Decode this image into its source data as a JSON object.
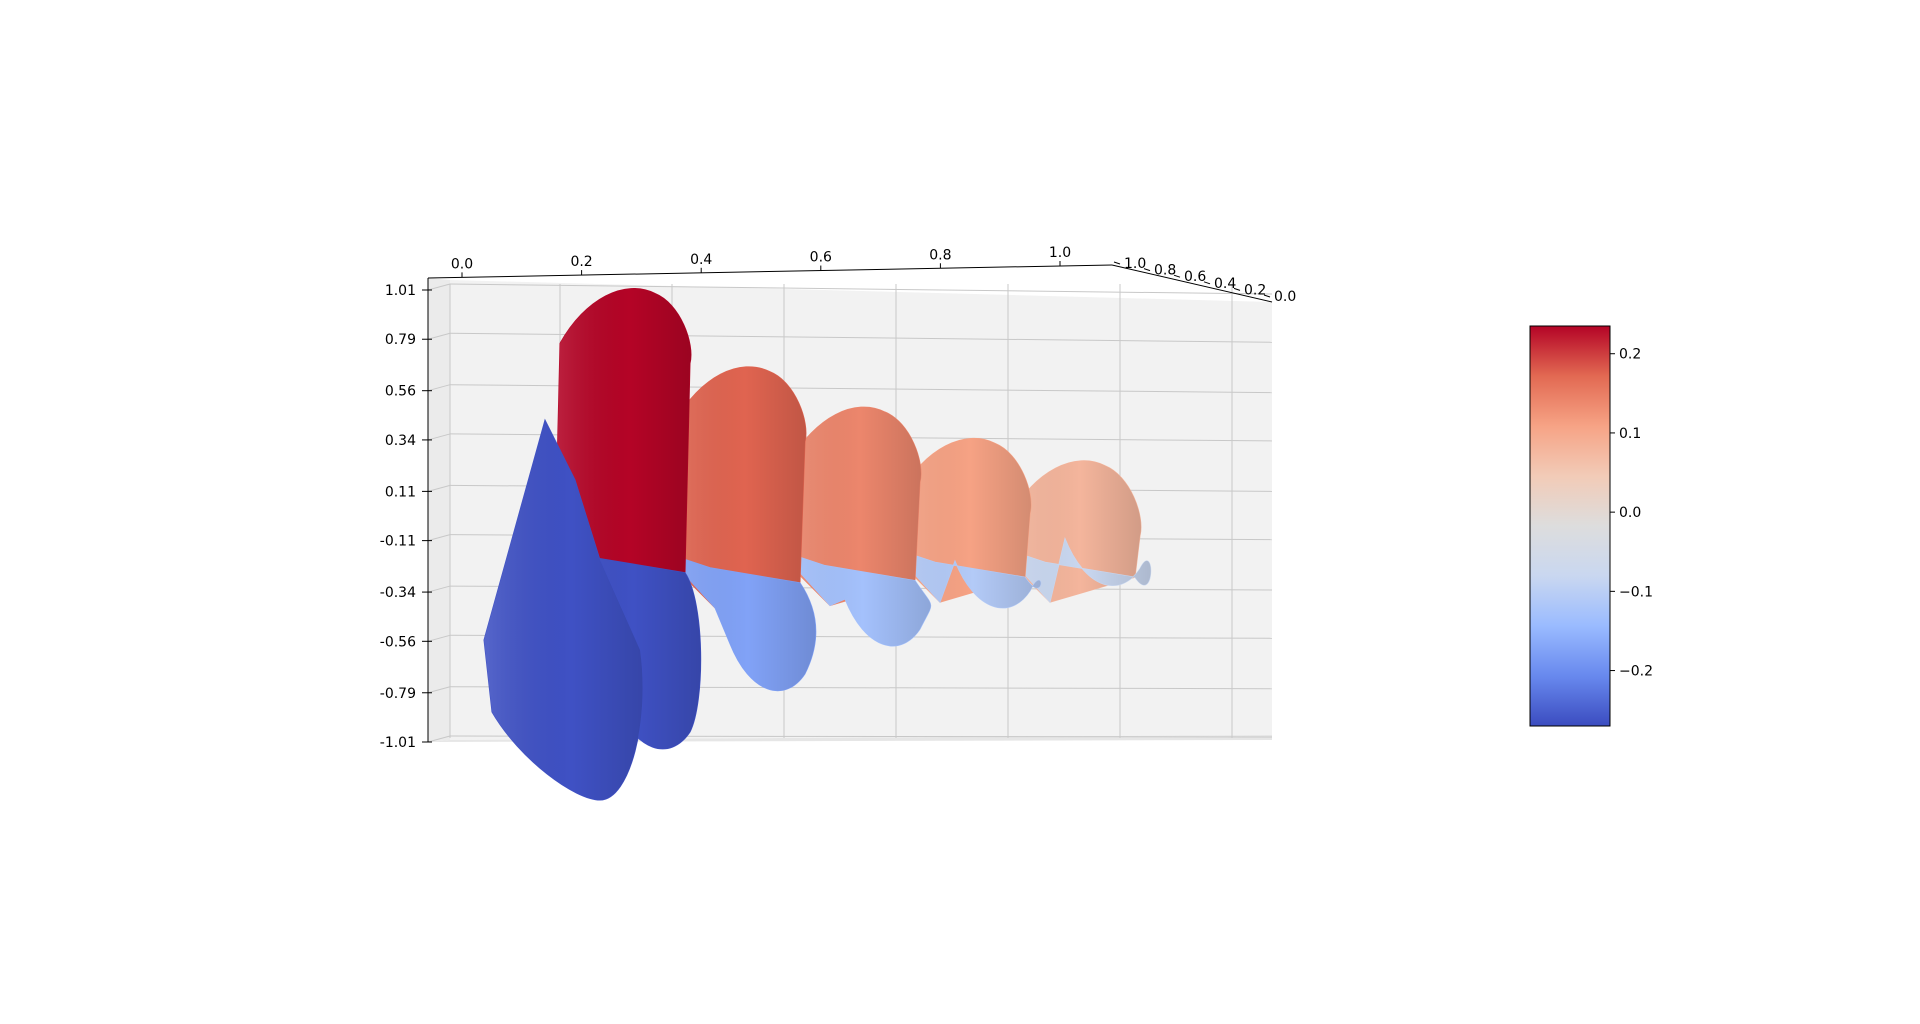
{
  "chart_data": {
    "type": "surface3d",
    "title": "",
    "xlabel": "",
    "ylabel": "",
    "zlabel": "",
    "x_ticks": [
      "0.0",
      "0.2",
      "0.4",
      "0.6",
      "0.8",
      "1.0"
    ],
    "y_ticks": [
      "1.0",
      "0.8",
      "0.6",
      "0.4",
      "0.2",
      "0.0"
    ],
    "z_ticks": [
      "1.01",
      "0.79",
      "0.56",
      "0.34",
      "0.11",
      "-0.11",
      "-0.34",
      "-0.56",
      "-0.79",
      "-1.01"
    ],
    "z_range": [
      -1.01,
      1.01
    ],
    "colormap": "coolwarm",
    "colormap_stops": [
      "#3b4cc0",
      "#6889ee",
      "#9abbff",
      "#c9d7f0",
      "#dddddd",
      "#f2cbb7",
      "#f6a385",
      "#e26952",
      "#b40426"
    ],
    "colorbar": {
      "range": [
        -0.27,
        0.235
      ],
      "ticks": [
        0.2,
        0.1,
        0.0,
        -0.1,
        -0.2
      ],
      "tick_labels": [
        "0.2",
        "0.1",
        "0.0",
        "−0.1",
        "−0.2"
      ]
    },
    "surface_lobes": [
      {
        "x": 0.0,
        "z_top": 0.95,
        "z_bottom": -1.01,
        "color_top": 0.235,
        "color_bottom": -0.265
      },
      {
        "x": 0.25,
        "z_top": 0.6,
        "z_bottom": -0.75,
        "color_top": 0.175,
        "color_bottom": -0.175
      },
      {
        "x": 0.5,
        "z_top": 0.42,
        "z_bottom": -0.55,
        "color_top": 0.14,
        "color_bottom": -0.13
      },
      {
        "x": 0.75,
        "z_top": 0.28,
        "z_bottom": -0.38,
        "color_top": 0.11,
        "color_bottom": -0.11
      },
      {
        "x": 1.0,
        "z_top": 0.18,
        "z_bottom": -0.28,
        "color_top": 0.08,
        "color_bottom": -0.08
      }
    ],
    "grid": true
  }
}
